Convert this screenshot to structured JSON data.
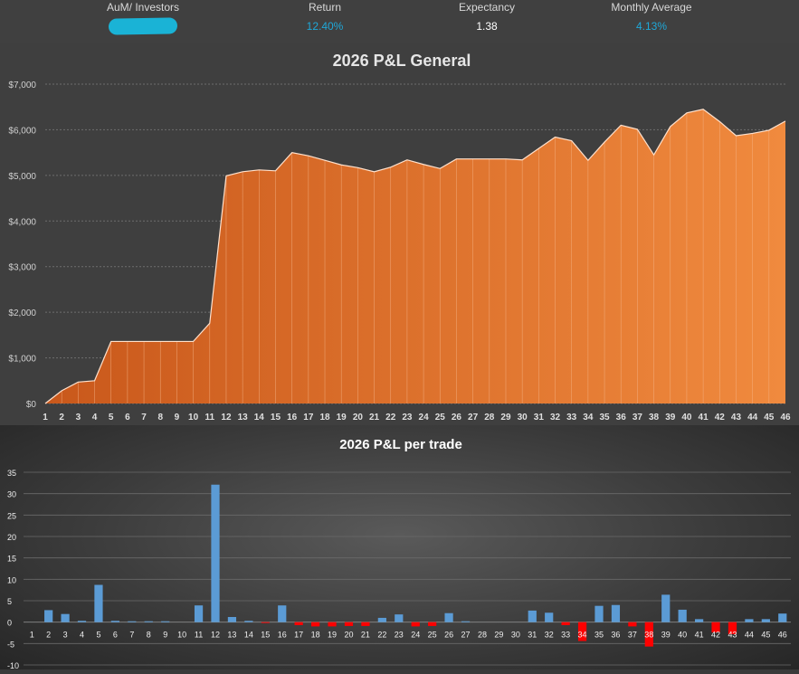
{
  "stats": {
    "aum_label": "AuM/ Investors",
    "return_label": "Return",
    "return_value": "12.40%",
    "expectancy_label": "Expectancy",
    "expectancy_value": "1.38",
    "monthly_label": "Monthly Average",
    "monthly_value": "4.13%"
  },
  "colors": {
    "area_dark": "#c9581b",
    "area_light": "#f08a3e",
    "positive_bar": "#5b9bd5",
    "negative_bar": "#ff0000",
    "highlight_text": "#1fa8d8",
    "redaction": "#1ab3d6"
  },
  "chart_data": [
    {
      "type": "area",
      "title": "2026 P&L General",
      "xlabel": "",
      "ylabel": "",
      "ylim": [
        0,
        7000
      ],
      "yticks": [
        0,
        1000,
        2000,
        3000,
        4000,
        5000,
        6000,
        7000
      ],
      "ytick_labels": [
        "$0",
        "$1,000",
        "$2,000",
        "$3,000",
        "$4,000",
        "$5,000",
        "$6,000",
        "$7,000"
      ],
      "grid": true,
      "x": [
        1,
        2,
        3,
        4,
        5,
        6,
        7,
        8,
        9,
        10,
        11,
        12,
        13,
        14,
        15,
        16,
        17,
        18,
        19,
        20,
        21,
        22,
        23,
        24,
        25,
        26,
        27,
        28,
        29,
        30,
        31,
        32,
        33,
        34,
        35,
        36,
        37,
        38,
        39,
        40,
        41,
        42,
        43,
        44,
        45,
        46
      ],
      "values": [
        0,
        280,
        470,
        500,
        1360,
        1360,
        1360,
        1360,
        1360,
        1360,
        1760,
        4990,
        5080,
        5120,
        5100,
        5500,
        5430,
        5330,
        5230,
        5170,
        5080,
        5180,
        5340,
        5240,
        5150,
        5360,
        5360,
        5360,
        5360,
        5340,
        5590,
        5840,
        5760,
        5330,
        5730,
        6100,
        6010,
        5450,
        6070,
        6370,
        6450,
        6180,
        5870,
        5920,
        5990,
        6190
      ]
    },
    {
      "type": "bar",
      "title": "2026 P&L per trade",
      "xlabel": "",
      "ylabel": "",
      "ylim": [
        -10,
        35
      ],
      "yticks": [
        -10,
        -5,
        0,
        5,
        10,
        15,
        20,
        25,
        30,
        35
      ],
      "grid": true,
      "categories": [
        1,
        2,
        3,
        4,
        5,
        6,
        7,
        8,
        9,
        10,
        11,
        12,
        13,
        14,
        15,
        16,
        17,
        18,
        19,
        20,
        21,
        22,
        23,
        24,
        25,
        26,
        27,
        28,
        29,
        30,
        31,
        32,
        33,
        34,
        35,
        36,
        37,
        38,
        39,
        40,
        41,
        42,
        43,
        44,
        45,
        46
      ],
      "values": [
        0,
        2.8,
        1.9,
        0.3,
        8.7,
        0.3,
        0.2,
        0.2,
        0.2,
        0,
        3.9,
        32.1,
        1.2,
        0.3,
        -0.2,
        3.9,
        -0.7,
        -1,
        -1,
        -0.9,
        -0.9,
        1,
        1.8,
        -1,
        -0.9,
        2.1,
        0.2,
        0,
        0,
        0,
        2.7,
        2.2,
        -0.7,
        -4.4,
        3.8,
        4,
        -1,
        -5.7,
        6.4,
        2.9,
        0.7,
        -2.4,
        -2.8,
        0.7,
        0.7,
        2
      ]
    }
  ]
}
